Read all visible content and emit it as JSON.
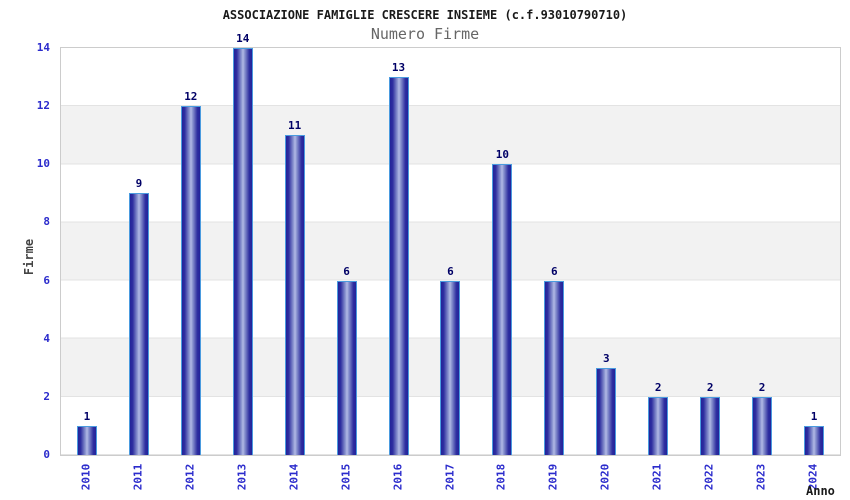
{
  "chart": {
    "title": "ASSOCIAZIONE FAMIGLIE CRESCERE INSIEME (c.f.93010790710)",
    "subtitle": "Numero Firme",
    "ylabel": "Firme",
    "xlabel": "Anno"
  },
  "chart_data": {
    "type": "bar",
    "title": "ASSOCIAZIONE FAMIGLIE CRESCERE INSIEME (c.f.93010790710)",
    "subtitle": "Numero Firme",
    "xlabel": "Anno",
    "ylabel": "Firme",
    "categories": [
      "2010",
      "2011",
      "2012",
      "2013",
      "2014",
      "2015",
      "2016",
      "2017",
      "2018",
      "2019",
      "2020",
      "2021",
      "2022",
      "2023",
      "2024"
    ],
    "values": [
      1,
      9,
      12,
      14,
      11,
      6,
      13,
      6,
      10,
      6,
      3,
      2,
      2,
      2,
      1
    ],
    "ylim": [
      0,
      14
    ],
    "yticks": [
      0,
      2,
      4,
      6,
      8,
      10,
      12,
      14
    ],
    "grid": "alternating horizontal bands every 2 units",
    "legend": "none",
    "bar_labels_shown": true,
    "colors": {
      "bar_dark": "#23239A",
      "bar_light": "#B2BAE6",
      "bar_border": "#4A9BDF",
      "tick_text": "#2B2BCC",
      "value_label": "#000066",
      "band_gray": "#F2F2F2",
      "grid_line": "#E3E3E3",
      "plot_border": "#CCCCCC",
      "subtitle_text": "#666666"
    }
  }
}
